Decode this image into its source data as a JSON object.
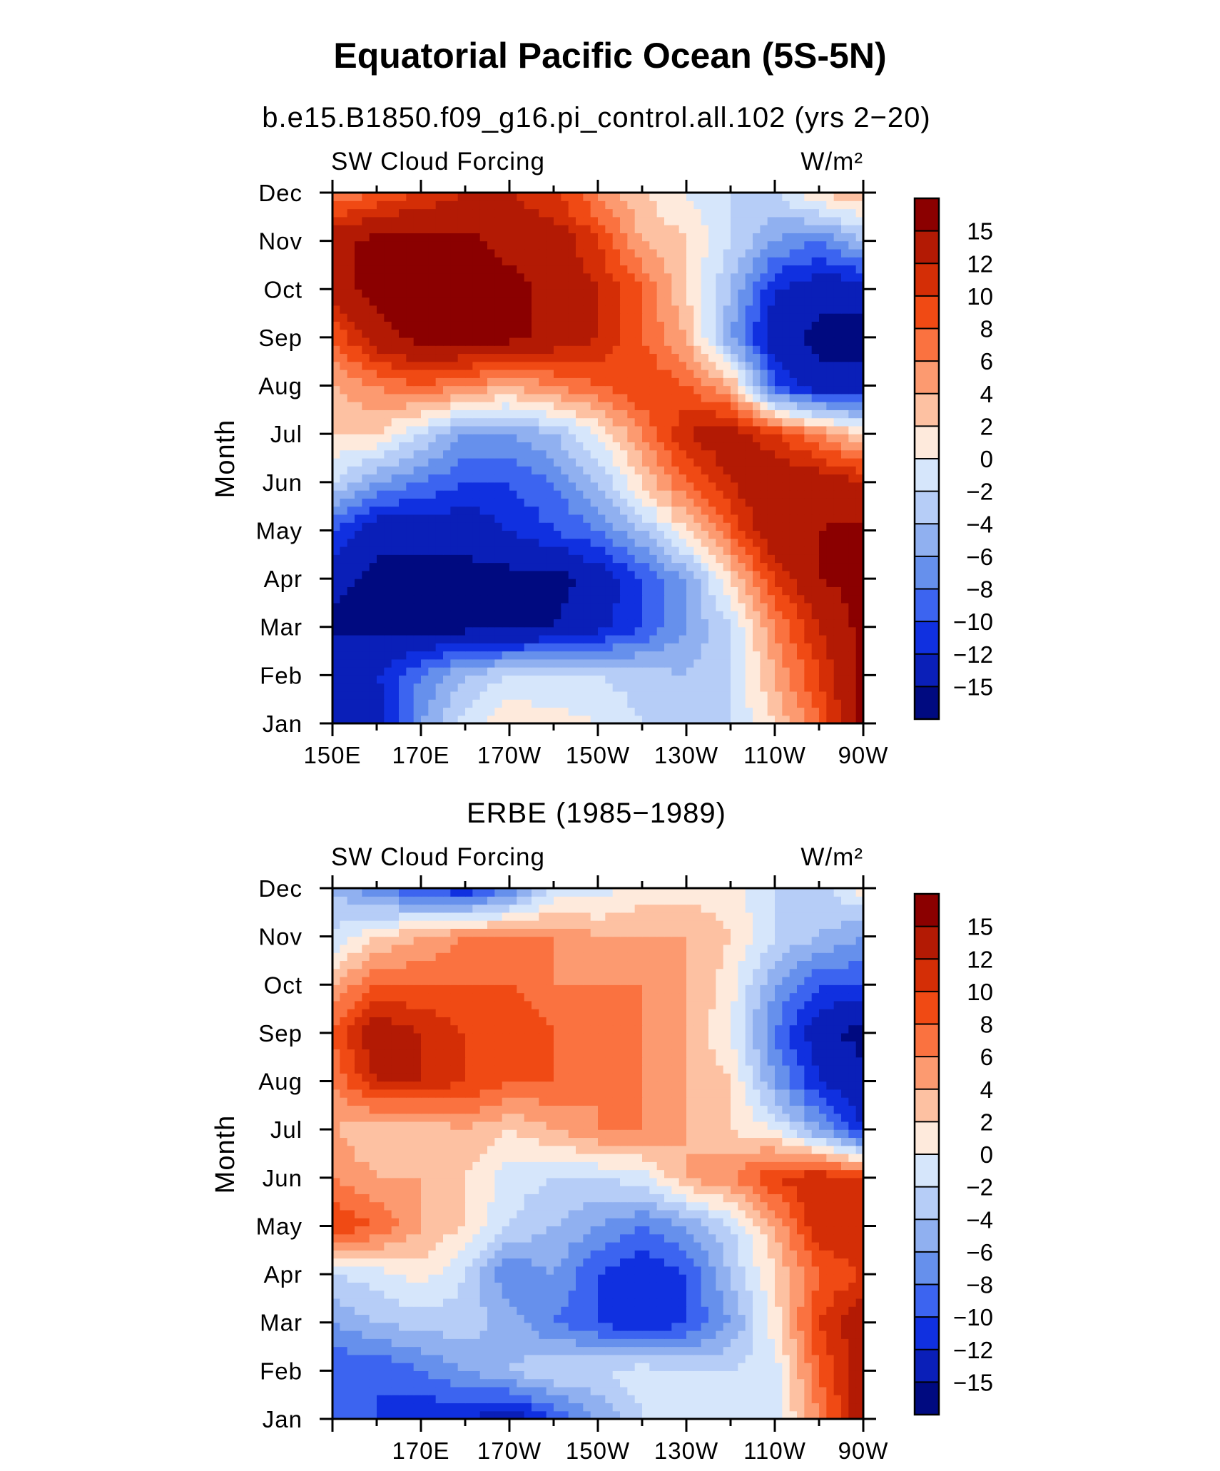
{
  "figure": {
    "title": "Equatorial Pacific Ocean (5S-5N)"
  },
  "chart_data": [
    {
      "type": "heatmap",
      "subtitle": "b.e15.B1850.f09_g16.pi_control.all.102 (yrs 2−20)",
      "left_label": "SW Cloud Forcing",
      "right_label": "W/m²",
      "ylabel": "Month",
      "y_ticks": [
        "Jan",
        "Feb",
        "Mar",
        "Apr",
        "May",
        "Jun",
        "Jul",
        "Aug",
        "Sep",
        "Oct",
        "Nov",
        "Dec"
      ],
      "x_ticks": [
        "150E",
        "170E",
        "170W",
        "150W",
        "130W",
        "110W",
        "90W"
      ],
      "x_range_lon_east": [
        150,
        270
      ],
      "x": [
        150,
        160,
        170,
        180,
        190,
        200,
        210,
        220,
        230,
        240,
        250,
        260,
        270
      ],
      "z": [
        [
          -13,
          -14,
          -6,
          -1,
          2,
          1,
          0,
          -2,
          -2,
          -2,
          2,
          8,
          16
        ],
        [
          -12,
          -12,
          -8,
          -4,
          -2,
          -2,
          -2,
          -3,
          -4,
          -2,
          4,
          10,
          16
        ],
        [
          -16,
          -16,
          -16,
          -16,
          -16,
          -15,
          -13,
          -10,
          -6,
          -2,
          6,
          12,
          16
        ],
        [
          -14,
          -16,
          -16,
          -16,
          -16,
          -16,
          -14,
          -10,
          -6,
          2,
          10,
          15,
          16
        ],
        [
          -10,
          -14,
          -14,
          -14,
          -12,
          -10,
          -8,
          -4,
          2,
          8,
          15,
          15,
          16
        ],
        [
          -2,
          -6,
          -8,
          -10,
          -10,
          -8,
          -4,
          2,
          8,
          12,
          15,
          14,
          12
        ],
        [
          2,
          2,
          -2,
          -6,
          -6,
          -4,
          0,
          6,
          12,
          14,
          10,
          6,
          2
        ],
        [
          4,
          6,
          8,
          6,
          4,
          6,
          8,
          10,
          8,
          4,
          -10,
          -14,
          -14
        ],
        [
          8,
          14,
          16,
          16,
          16,
          14,
          12,
          8,
          4,
          -6,
          -14,
          -16,
          -16
        ],
        [
          14,
          16,
          16,
          16,
          16,
          14,
          12,
          8,
          2,
          -4,
          -12,
          -14,
          -14
        ],
        [
          14,
          16,
          16,
          16,
          14,
          14,
          10,
          4,
          2,
          -2,
          -6,
          -8,
          -4
        ],
        [
          6,
          8,
          10,
          12,
          12,
          10,
          6,
          2,
          0,
          -2,
          -2,
          2,
          4
        ]
      ],
      "color_levels": [
        "15",
        "12",
        "10",
        "8",
        "6",
        "4",
        "2",
        "0",
        "−2",
        "−4",
        "−6",
        "−8",
        "−10",
        "−12",
        "−15"
      ],
      "colors": [
        "#8b0000",
        "#b31a04",
        "#d42e06",
        "#f04a14",
        "#fa7240",
        "#fc9a70",
        "#fdc1a2",
        "#feeadc",
        "#d6e6fb",
        "#b6cdf7",
        "#90b0f0",
        "#6690ec",
        "#3c64f0",
        "#1030e0",
        "#0a1fb8",
        "#000a80"
      ]
    },
    {
      "type": "heatmap",
      "subtitle": "ERBE (1985−1989)",
      "left_label": "SW Cloud Forcing",
      "right_label": "W/m²",
      "ylabel": "Month",
      "y_ticks": [
        "Jan",
        "Feb",
        "Mar",
        "Apr",
        "May",
        "Jun",
        "Jul",
        "Aug",
        "Sep",
        "Oct",
        "Nov",
        "Dec"
      ],
      "x_ticks": [
        "170E",
        "170W",
        "150W",
        "130W",
        "110W",
        "90W"
      ],
      "x_range_lon_east": [
        150,
        270
      ],
      "x": [
        150,
        160,
        170,
        180,
        190,
        200,
        210,
        220,
        230,
        240,
        250,
        260,
        270
      ],
      "z": [
        [
          -8,
          -10,
          -12,
          -12,
          -14,
          -10,
          -6,
          -2,
          -1,
          -2,
          -1,
          6,
          14
        ],
        [
          -10,
          -10,
          -8,
          -6,
          -4,
          -2,
          -2,
          -1,
          -2,
          -2,
          -1,
          8,
          14
        ],
        [
          -6,
          -4,
          -3,
          -3,
          -5,
          -8,
          -10,
          -12,
          -10,
          -6,
          1,
          10,
          14
        ],
        [
          -2,
          -1,
          1,
          -2,
          -8,
          -6,
          -10,
          -12,
          -10,
          -4,
          2,
          8,
          10
        ],
        [
          10,
          8,
          4,
          2,
          -2,
          -4,
          -6,
          -8,
          -6,
          -2,
          4,
          12,
          12
        ],
        [
          6,
          4,
          4,
          2,
          -1,
          -2,
          -2,
          -1,
          4,
          6,
          10,
          12,
          10
        ],
        [
          4,
          2,
          2,
          4,
          2,
          4,
          6,
          6,
          4,
          2,
          0,
          -6,
          -12
        ],
        [
          6,
          12,
          12,
          10,
          8,
          8,
          6,
          6,
          4,
          2,
          -6,
          -12,
          -14
        ],
        [
          8,
          14,
          12,
          10,
          10,
          8,
          6,
          6,
          4,
          0,
          -8,
          -14,
          -16
        ],
        [
          4,
          8,
          8,
          8,
          8,
          6,
          6,
          6,
          4,
          1,
          -6,
          -10,
          -10
        ],
        [
          -2,
          2,
          4,
          6,
          6,
          6,
          4,
          4,
          4,
          2,
          -2,
          -4,
          -6
        ],
        [
          -4,
          -8,
          -10,
          -12,
          -8,
          -2,
          -1,
          1,
          1,
          1,
          -2,
          -3,
          1
        ]
      ],
      "color_levels": [
        "15",
        "12",
        "10",
        "8",
        "6",
        "4",
        "2",
        "0",
        "−2",
        "−4",
        "−6",
        "−8",
        "−10",
        "−12",
        "−15"
      ],
      "colors": [
        "#8b0000",
        "#b31a04",
        "#d42e06",
        "#f04a14",
        "#fa7240",
        "#fc9a70",
        "#fdc1a2",
        "#feeadc",
        "#d6e6fb",
        "#b6cdf7",
        "#90b0f0",
        "#6690ec",
        "#3c64f0",
        "#1030e0",
        "#0a1fb8",
        "#000a80"
      ]
    }
  ]
}
